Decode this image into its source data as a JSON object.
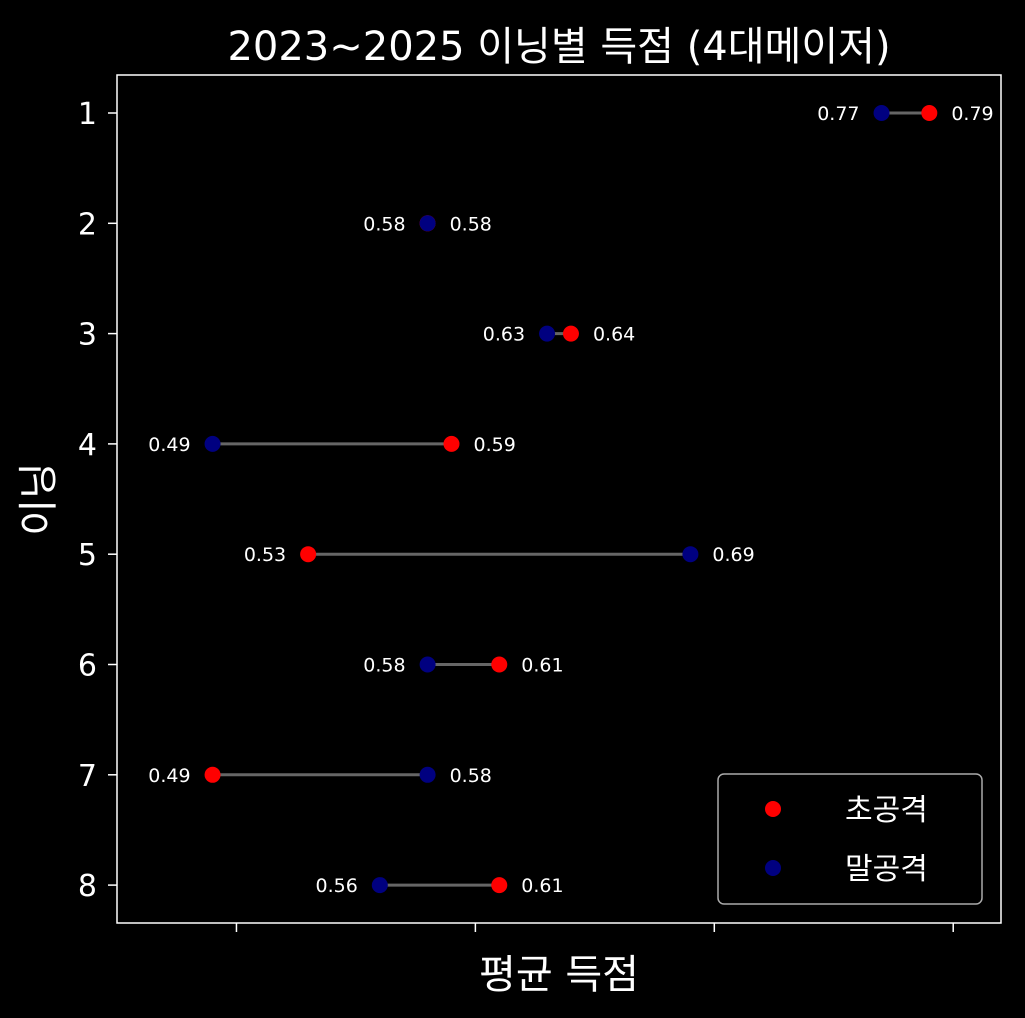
{
  "chart_data": {
    "type": "dumbbell",
    "title": "2023~2025 이닝별 득점 (4대메이저)",
    "xlabel": "평균 득점",
    "ylabel": "이닝",
    "categories": [
      "1",
      "2",
      "3",
      "4",
      "5",
      "6",
      "7",
      "8"
    ],
    "series": [
      {
        "name": "초공격",
        "color": "#ff0000",
        "values": [
          0.79,
          0.58,
          0.64,
          0.59,
          0.53,
          0.61,
          0.49,
          0.61
        ]
      },
      {
        "name": "말공격",
        "color": "#000080",
        "values": [
          0.77,
          0.58,
          0.63,
          0.49,
          0.69,
          0.58,
          0.58,
          0.56
        ]
      }
    ],
    "xlim": [
      0.45,
      0.82
    ],
    "grid": false,
    "legend_position": "bottom-right",
    "connector_color": "#666666"
  }
}
